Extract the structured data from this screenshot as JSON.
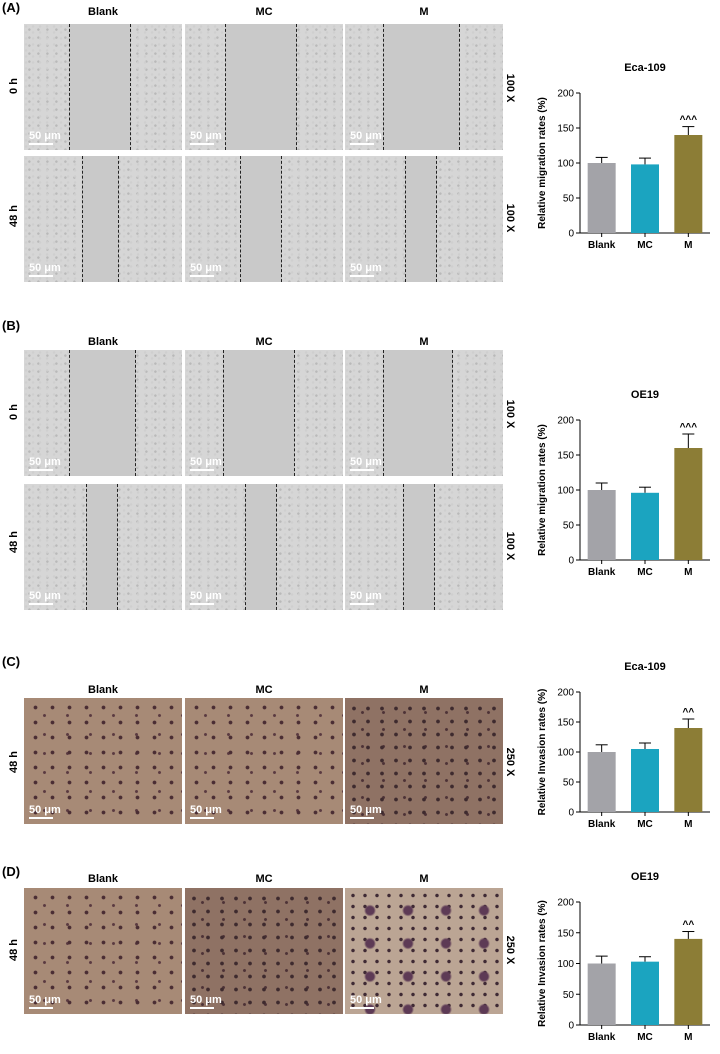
{
  "scale_bar": "50 μm",
  "panels": [
    {
      "label": "(A)",
      "columns": [
        "Blank",
        "MC",
        "M"
      ],
      "rows": [
        "0 h",
        "48 h"
      ],
      "magnification": "100 X"
    },
    {
      "label": "(B)",
      "columns": [
        "Blank",
        "MC",
        "M"
      ],
      "rows": [
        "0 h",
        "48 h"
      ],
      "magnification": "100 X"
    },
    {
      "label": "(C)",
      "columns": [
        "Blank",
        "MC",
        "M"
      ],
      "rows": [
        "48 h"
      ],
      "magnification": "250 X"
    },
    {
      "label": "(D)",
      "columns": [
        "Blank",
        "MC",
        "M"
      ],
      "rows": [
        "48 h"
      ],
      "magnification": "250 X"
    }
  ],
  "chart_data": [
    {
      "type": "bar",
      "title": "Eca-109",
      "ylabel": "Relative migration rates (%)",
      "categories": [
        "Blank",
        "MC",
        "M"
      ],
      "values": [
        100,
        98,
        140
      ],
      "errors": [
        8,
        9,
        12
      ],
      "annotations": [
        "",
        "",
        "^^^"
      ],
      "colors": [
        "#a3a3a8",
        "#1ba4c0",
        "#8c7d36"
      ],
      "ylim": [
        0,
        200
      ],
      "yticks": [
        0,
        50,
        100,
        150,
        200
      ]
    },
    {
      "type": "bar",
      "title": "OE19",
      "ylabel": "Relative migration rates (%)",
      "categories": [
        "Blank",
        "MC",
        "M"
      ],
      "values": [
        100,
        96,
        160
      ],
      "errors": [
        10,
        8,
        20
      ],
      "annotations": [
        "",
        "",
        "^^^"
      ],
      "colors": [
        "#a3a3a8",
        "#1ba4c0",
        "#8c7d36"
      ],
      "ylim": [
        0,
        200
      ],
      "yticks": [
        0,
        50,
        100,
        150,
        200
      ]
    },
    {
      "type": "bar",
      "title": "Eca-109",
      "ylabel": "Relative Invasion rates (%)",
      "categories": [
        "Blank",
        "MC",
        "M"
      ],
      "values": [
        100,
        105,
        140
      ],
      "errors": [
        12,
        10,
        15
      ],
      "annotations": [
        "",
        "",
        "^^"
      ],
      "colors": [
        "#a3a3a8",
        "#1ba4c0",
        "#8c7d36"
      ],
      "ylim": [
        0,
        200
      ],
      "yticks": [
        0,
        50,
        100,
        150,
        200
      ]
    },
    {
      "type": "bar",
      "title": "OE19",
      "ylabel": "Relative Invasion rates (%)",
      "categories": [
        "Blank",
        "MC",
        "M"
      ],
      "values": [
        100,
        103,
        140
      ],
      "errors": [
        12,
        8,
        12
      ],
      "annotations": [
        "",
        "",
        "^^"
      ],
      "colors": [
        "#a3a3a8",
        "#1ba4c0",
        "#8c7d36"
      ],
      "ylim": [
        0,
        200
      ],
      "yticks": [
        0,
        50,
        100,
        150,
        200
      ]
    }
  ]
}
